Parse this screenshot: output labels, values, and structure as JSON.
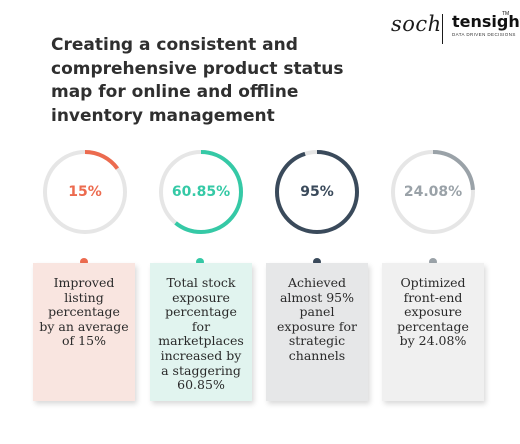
{
  "logo": {
    "soch": "soch",
    "tensight": "tensight",
    "tm": "TM",
    "tagline": "DATA DRIVEN DECISIONS"
  },
  "title": "Creating a consistent and comprehensive product status map for online and offline inventory management",
  "metrics": [
    {
      "value": "15%",
      "fraction": 0.15,
      "color": "#ec6b4f",
      "card_bg": "#f9e5e0",
      "description": "Improved listing percentage by an average of 15%"
    },
    {
      "value": "60.85%",
      "fraction": 0.6085,
      "color": "#35c9a6",
      "card_bg": "#e1f4ef",
      "description": "Total stock exposure percentage for marketplaces increased by a staggering 60.85%"
    },
    {
      "value": "95%",
      "fraction": 0.95,
      "color": "#3a4a5b",
      "card_bg": "#e6e7e8",
      "description": "Achieved almost 95% panel exposure for strategic channels"
    },
    {
      "value": "24.08%",
      "fraction": 0.2408,
      "color": "#9aa2a8",
      "card_bg": "#f0f0f0",
      "description": "Optimized front-end exposure percentage by 24.08%"
    }
  ]
}
